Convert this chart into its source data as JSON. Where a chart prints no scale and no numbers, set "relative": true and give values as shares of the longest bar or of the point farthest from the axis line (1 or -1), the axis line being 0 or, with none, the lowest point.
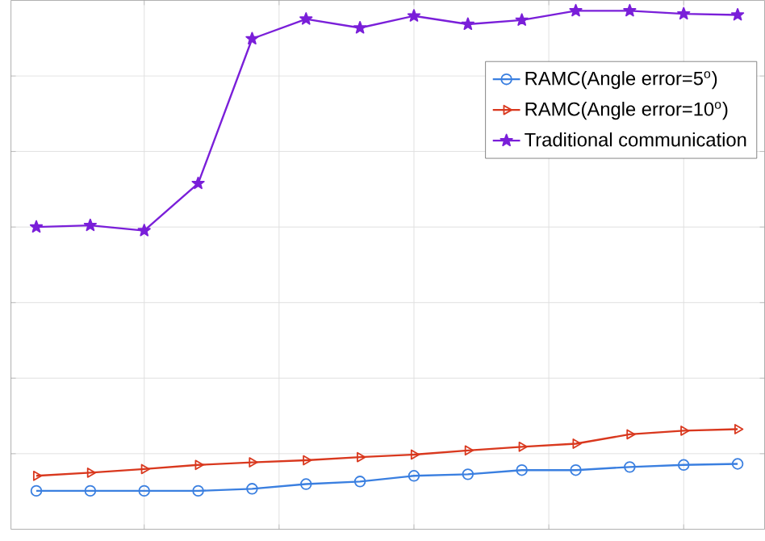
{
  "chart_data": {
    "type": "line",
    "relative": true,
    "grid": true,
    "legend": "top right",
    "categories": [
      null,
      null,
      null,
      null,
      null,
      null,
      null,
      null,
      null,
      null,
      null,
      null,
      null,
      null
    ],
    "series": [
      {
        "name": "RAMC(Angle error=5$^{o}$)",
        "color": "#3a7fe0",
        "marker": "circle",
        "values": [
          0.074,
          0.074,
          0.074,
          0.074,
          0.078,
          0.087,
          0.092,
          0.103,
          0.106,
          0.114,
          0.114,
          0.12,
          0.124,
          0.126
        ]
      },
      {
        "name": "RAMC(Angle error=10$^{o}$)",
        "color": "#d9381e",
        "marker": "triangle",
        "values": [
          0.103,
          0.109,
          0.116,
          0.124,
          0.129,
          0.133,
          0.139,
          0.144,
          0.152,
          0.159,
          0.165,
          0.183,
          0.19,
          0.193
        ]
      },
      {
        "name": "Traditional communication",
        "color": "#7a1fd9",
        "marker": "star",
        "values": [
          0.583,
          0.586,
          0.576,
          0.667,
          0.946,
          0.984,
          0.967,
          0.99,
          0.974,
          0.982,
          1,
          1,
          0.994,
          0.992
        ]
      }
    ]
  }
}
